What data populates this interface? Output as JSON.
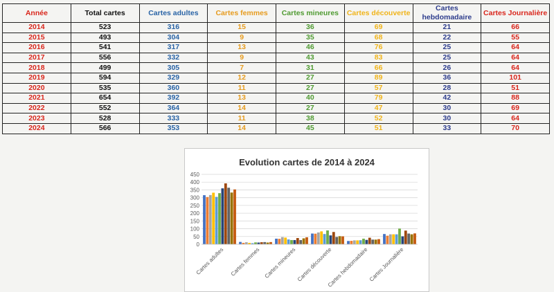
{
  "table": {
    "headers": [
      "Année",
      "Total cartes",
      "Cartes adultes",
      "Cartes femmes",
      "Cartes mineures",
      "Cartes découverte",
      "Cartes hebdomadaire",
      "Cartes Journalière"
    ],
    "rows": [
      [
        "2014",
        "523",
        "316",
        "15",
        "36",
        "69",
        "21",
        "66"
      ],
      [
        "2015",
        "493",
        "304",
        "9",
        "35",
        "68",
        "22",
        "55"
      ],
      [
        "2016",
        "541",
        "317",
        "13",
        "46",
        "76",
        "25",
        "64"
      ],
      [
        "2017",
        "556",
        "332",
        "9",
        "43",
        "83",
        "25",
        "64"
      ],
      [
        "2018",
        "499",
        "305",
        "7",
        "31",
        "66",
        "26",
        "64"
      ],
      [
        "2019",
        "594",
        "329",
        "12",
        "27",
        "89",
        "36",
        "101"
      ],
      [
        "2020",
        "535",
        "360",
        "11",
        "27",
        "57",
        "28",
        "51"
      ],
      [
        "2021",
        "654",
        "392",
        "13",
        "40",
        "79",
        "42",
        "88"
      ],
      [
        "2022",
        "552",
        "364",
        "14",
        "27",
        "47",
        "30",
        "69"
      ],
      [
        "2023",
        "528",
        "333",
        "11",
        "38",
        "52",
        "30",
        "64"
      ],
      [
        "2024",
        "566",
        "353",
        "14",
        "45",
        "51",
        "33",
        "70"
      ]
    ]
  },
  "colors": {
    "year": "#d9261c",
    "total": "#111111",
    "adultes": "#2a64a6",
    "femmes": "#e69b1e",
    "mineures": "#4f9a31",
    "decouverte": "#f0b41a",
    "hebdo": "#2d3c8c",
    "journaliere": "#d9261c"
  },
  "chart_data": {
    "type": "bar",
    "title": "Evolution cartes de 2014 à 2024",
    "categories": [
      "Cartes adultes",
      "Cartes femmes",
      "Cartes mineures",
      "Cartes découverte",
      "Cartes hebdomadaire",
      "Cartes Journalière"
    ],
    "ylim": [
      0,
      450
    ],
    "yticks": [
      0,
      50,
      100,
      150,
      200,
      250,
      300,
      350,
      400,
      450
    ],
    "grid": true,
    "series": [
      {
        "values": [
          316,
          15,
          36,
          69,
          21,
          66
        ],
        "color": "#4472c4"
      },
      {
        "values": [
          304,
          9,
          35,
          68,
          22,
          55
        ],
        "color": "#ed7d31"
      },
      {
        "values": [
          317,
          13,
          46,
          76,
          25,
          64
        ],
        "color": "#a5a5a5"
      },
      {
        "values": [
          332,
          9,
          43,
          83,
          25,
          64
        ],
        "color": "#ffc000"
      },
      {
        "values": [
          305,
          7,
          31,
          66,
          26,
          64
        ],
        "color": "#5b9bd5"
      },
      {
        "values": [
          329,
          12,
          27,
          89,
          36,
          101
        ],
        "color": "#70ad47"
      },
      {
        "values": [
          360,
          11,
          27,
          57,
          28,
          51
        ],
        "color": "#264478"
      },
      {
        "values": [
          392,
          13,
          40,
          79,
          42,
          88
        ],
        "color": "#9e480e"
      },
      {
        "values": [
          364,
          14,
          27,
          47,
          30,
          69
        ],
        "color": "#636363"
      },
      {
        "values": [
          333,
          11,
          38,
          52,
          30,
          64
        ],
        "color": "#997300"
      },
      {
        "values": [
          353,
          14,
          45,
          51,
          33,
          70
        ],
        "color": "#c55a11"
      }
    ]
  }
}
